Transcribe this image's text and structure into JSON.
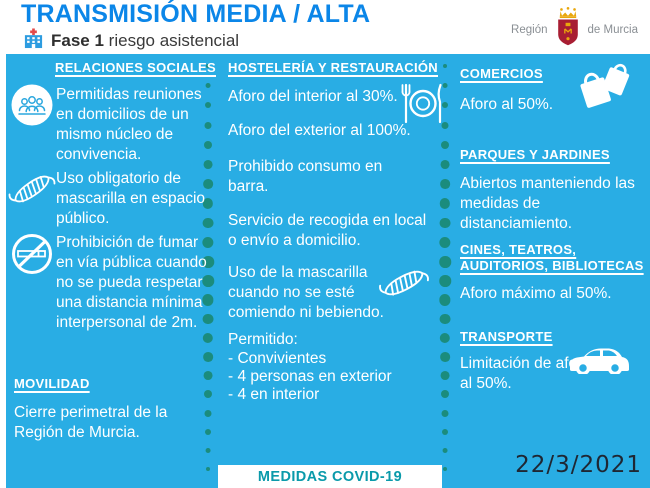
{
  "colors": {
    "background_cyan": "#29ade4",
    "title_blue": "#0b86e8",
    "separator_dot_teal": "#1b8c7d",
    "badge_teal": "#0a9aaa",
    "murcia_shield_red": "#a81e33",
    "crown_yellow": "#e9a70c",
    "date_ink": "#1f2733"
  },
  "header": {
    "title": "TRANSMISIÓN MEDIA / ALTA",
    "phase_bold": "Fase 1",
    "phase_rest": "riesgo asistencial",
    "hospital_icon": "hospital-icon",
    "logo": {
      "left": "Región",
      "right": "de Murcia",
      "emblem_icon": "murcia-coat-of-arms-icon"
    }
  },
  "col1": {
    "social": {
      "heading": "RELACIONES SOCIALES",
      "items": [
        {
          "icon": "people-group-icon",
          "text": "Permitidas reuniones en domicilios de un mismo núcleo de convivencia."
        },
        {
          "icon": "face-mask-icon",
          "text": "Uso obligatorio de mascarilla en espacio público."
        },
        {
          "icon": "no-smoking-icon",
          "text": "Prohibición de fumar en vía pública cuando no se pueda respetar una distancia mínima interpersonal de 2m."
        }
      ]
    },
    "mobility": {
      "heading": "MOVILIDAD",
      "text": "Cierre perimetral de la Región de Murcia."
    }
  },
  "col2": {
    "heading": "HOSTELERÍA Y RESTAURACIÓN",
    "plate_icon": "plate-cutlery-icon",
    "mask_icon": "face-mask-icon",
    "aforo_interior": "Aforo del interior al 30%.",
    "aforo_exterior": "Aforo del exterior al 100%.",
    "barra": "Prohibido consumo en barra.",
    "recogida": "Servicio de recogida en local o envío a domicilio.",
    "mascarilla": "Uso de la mascarilla cuando no se esté comiendo ni bebiendo.",
    "permitido_title": "Permitido:",
    "permitido_items": [
      "- Convivientes",
      "- 4 personas en exterior",
      "- 4 en interior"
    ]
  },
  "col3": {
    "comercios": {
      "heading": "COMERCIOS",
      "text": "Aforo al 50%.",
      "icon": "shopping-bags-icon"
    },
    "parques": {
      "heading": "PARQUES Y JARDINES",
      "text": "Abiertos manteniendo las medidas de distanciamiento."
    },
    "cines": {
      "heading": "CINES, TEATROS, AUDITORIOS, BIBLIOTECAS",
      "text": "Aforo máximo al 50%."
    },
    "transporte": {
      "heading": "TRANSPORTE",
      "text": "Limitación de aforo al 50%.",
      "icon": "car-icon"
    }
  },
  "footer": {
    "badge": "MEDIDAS COVID-19",
    "date": "22/3/2021"
  }
}
